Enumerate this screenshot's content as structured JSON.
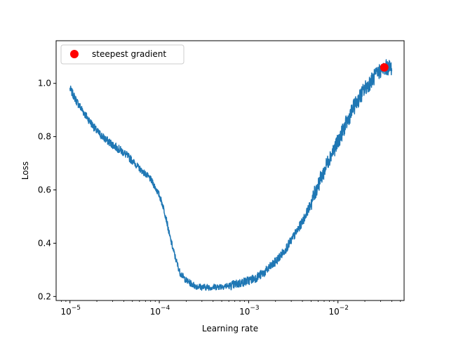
{
  "chart_data": {
    "type": "line",
    "xlabel": "Learning rate",
    "ylabel": "Loss",
    "xscale": "log",
    "xlim": [
      7e-06,
      0.055
    ],
    "ylim": [
      0.185,
      1.16
    ],
    "x_ticks": [
      {
        "value": 1e-05,
        "base": "10",
        "exp": "−5"
      },
      {
        "value": 0.0001,
        "base": "10",
        "exp": "−4"
      },
      {
        "value": 0.001,
        "base": "10",
        "exp": "−3"
      },
      {
        "value": 0.01,
        "base": "10",
        "exp": "−2"
      }
    ],
    "y_ticks": [
      {
        "value": 0.2,
        "label": "0.2"
      },
      {
        "value": 0.4,
        "label": "0.4"
      },
      {
        "value": 0.6,
        "label": "0.6"
      },
      {
        "value": 0.8,
        "label": "0.8"
      },
      {
        "value": 1.0,
        "label": "1.0"
      }
    ],
    "grid": false,
    "legend_position": "top-left",
    "series": [
      {
        "color": "#1f77b4",
        "x": [
          1e-05,
          1.2e-05,
          1.5e-05,
          2e-05,
          2.5e-05,
          3e-05,
          4e-05,
          5e-05,
          6e-05,
          7e-05,
          8e-05,
          9e-05,
          0.0001,
          0.00011,
          0.00012,
          0.00013,
          0.00015,
          0.00017,
          0.0002,
          0.00025,
          0.0003,
          0.0004,
          0.0005,
          0.0006,
          0.0007,
          0.0008,
          0.001,
          0.0012,
          0.0015,
          0.002,
          0.0025,
          0.003,
          0.004,
          0.005,
          0.006,
          0.007,
          0.008,
          0.01,
          0.012,
          0.015,
          0.02,
          0.025,
          0.03,
          0.035,
          0.04
        ],
        "y": [
          0.98,
          0.93,
          0.88,
          0.82,
          0.79,
          0.77,
          0.74,
          0.71,
          0.68,
          0.66,
          0.64,
          0.61,
          0.58,
          0.54,
          0.49,
          0.43,
          0.35,
          0.29,
          0.26,
          0.24,
          0.235,
          0.235,
          0.238,
          0.24,
          0.245,
          0.25,
          0.26,
          0.27,
          0.29,
          0.33,
          0.37,
          0.41,
          0.48,
          0.55,
          0.62,
          0.67,
          0.72,
          0.78,
          0.84,
          0.91,
          0.98,
          1.02,
          1.05,
          1.06,
          1.06
        ]
      }
    ],
    "points": [
      {
        "name": "steepest gradient",
        "x": 0.033,
        "y": 1.06,
        "color": "#ff0000"
      }
    ]
  }
}
